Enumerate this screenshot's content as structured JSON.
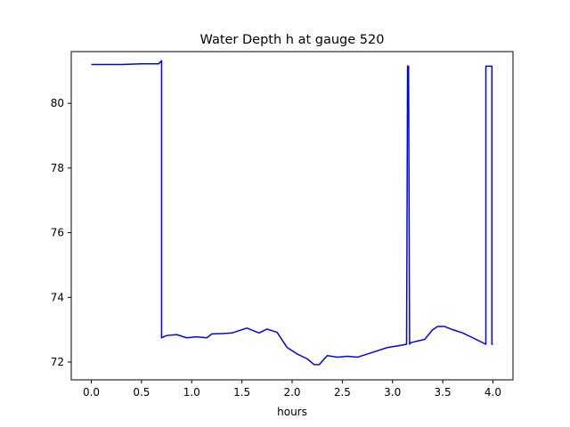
{
  "chart_data": {
    "type": "line",
    "title": "Water Depth h at gauge 520",
    "xlabel": "hours",
    "ylabel": "",
    "xlim": [
      -0.2,
      4.2
    ],
    "ylim": [
      71.45,
      81.6
    ],
    "xticks": [
      "0.0",
      "0.5",
      "1.0",
      "1.5",
      "2.0",
      "2.5",
      "3.0",
      "3.5",
      "4.0"
    ],
    "yticks": [
      "72",
      "74",
      "76",
      "78",
      "80"
    ],
    "grid": false,
    "legend": "none",
    "series": [
      {
        "color": "#0000ff",
        "x": [
          0.0,
          0.3,
          0.5,
          0.67,
          0.7,
          0.7,
          0.75,
          0.85,
          0.95,
          1.05,
          1.15,
          1.2,
          1.3,
          1.4,
          1.55,
          1.67,
          1.75,
          1.85,
          1.95,
          2.05,
          2.15,
          2.22,
          2.27,
          2.35,
          2.45,
          2.55,
          2.65,
          2.75,
          2.85,
          2.95,
          3.05,
          3.14,
          3.15,
          3.16,
          3.17,
          3.17,
          3.18,
          3.25,
          3.32,
          3.4,
          3.45,
          3.52,
          3.6,
          3.7,
          3.8,
          3.93,
          3.93,
          3.99,
          3.99,
          4.0
        ],
        "y": [
          81.2,
          81.2,
          81.22,
          81.22,
          81.32,
          72.75,
          72.82,
          72.85,
          72.75,
          72.78,
          72.75,
          72.87,
          72.88,
          72.9,
          73.05,
          72.9,
          73.02,
          72.92,
          72.45,
          72.25,
          72.1,
          71.92,
          71.92,
          72.2,
          72.15,
          72.18,
          72.15,
          72.25,
          72.35,
          72.45,
          72.5,
          72.55,
          81.15,
          81.15,
          72.55,
          72.55,
          72.6,
          72.65,
          72.7,
          73.0,
          73.1,
          73.1,
          73.0,
          72.9,
          72.75,
          72.55,
          81.15,
          81.15,
          72.55,
          72.55
        ]
      }
    ]
  }
}
